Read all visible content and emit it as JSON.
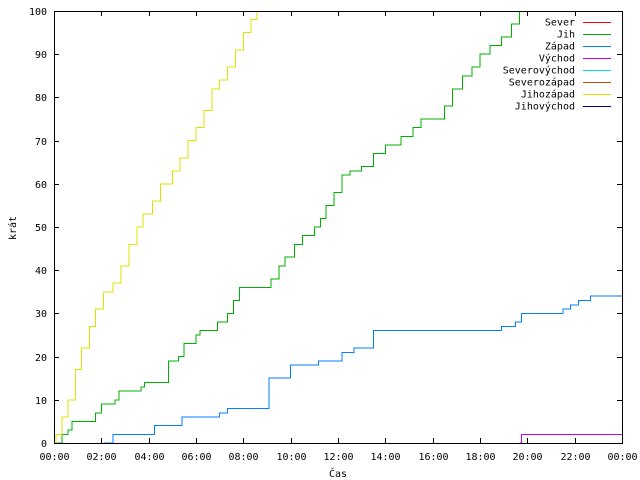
{
  "chart_data": {
    "type": "line",
    "xlabel": "Čas",
    "ylabel": "krát",
    "xlim": [
      "00:00",
      "24:00"
    ],
    "ylim": [
      0,
      100
    ],
    "x_ticks": [
      "00:00",
      "02:00",
      "04:00",
      "06:00",
      "08:00",
      "10:00",
      "12:00",
      "14:00",
      "16:00",
      "18:00",
      "20:00",
      "22:00",
      "00:00"
    ],
    "y_ticks": [
      0,
      10,
      20,
      30,
      40,
      50,
      60,
      70,
      80,
      90,
      100
    ],
    "grid": false,
    "legend_position": "top-right",
    "series": [
      {
        "name": "Sever",
        "color": "#ff0000",
        "points": []
      },
      {
        "name": "Jih",
        "color": "#00b000",
        "points": [
          [
            "00:00",
            0
          ],
          [
            "00:10",
            0
          ],
          [
            "00:20",
            2
          ],
          [
            "00:35",
            3
          ],
          [
            "00:45",
            5
          ],
          [
            "01:30",
            5
          ],
          [
            "01:45",
            7
          ],
          [
            "02:00",
            9
          ],
          [
            "02:35",
            10
          ],
          [
            "02:45",
            12
          ],
          [
            "03:30",
            12
          ],
          [
            "03:40",
            13
          ],
          [
            "03:50",
            14
          ],
          [
            "04:30",
            14
          ],
          [
            "04:50",
            19
          ],
          [
            "05:15",
            20
          ],
          [
            "05:30",
            23
          ],
          [
            "06:00",
            25
          ],
          [
            "06:10",
            26
          ],
          [
            "06:45",
            26
          ],
          [
            "06:55",
            28
          ],
          [
            "07:20",
            30
          ],
          [
            "07:35",
            33
          ],
          [
            "07:50",
            36
          ],
          [
            "08:50",
            36
          ],
          [
            "09:10",
            38
          ],
          [
            "09:30",
            41
          ],
          [
            "09:45",
            43
          ],
          [
            "10:10",
            46
          ],
          [
            "10:30",
            48
          ],
          [
            "11:00",
            50
          ],
          [
            "11:15",
            52
          ],
          [
            "11:30",
            55
          ],
          [
            "11:50",
            58
          ],
          [
            "12:10",
            62
          ],
          [
            "12:30",
            63
          ],
          [
            "13:00",
            64
          ],
          [
            "13:30",
            67
          ],
          [
            "14:00",
            69
          ],
          [
            "14:40",
            71
          ],
          [
            "15:10",
            73
          ],
          [
            "15:30",
            75
          ],
          [
            "16:10",
            75
          ],
          [
            "16:30",
            78
          ],
          [
            "16:50",
            82
          ],
          [
            "17:15",
            85
          ],
          [
            "17:40",
            87
          ],
          [
            "18:00",
            90
          ],
          [
            "18:25",
            92
          ],
          [
            "18:55",
            94
          ],
          [
            "19:20",
            97
          ],
          [
            "19:40",
            100
          ]
        ]
      },
      {
        "name": "Západ",
        "color": "#0080ff",
        "points": [
          [
            "02:05",
            0
          ],
          [
            "02:30",
            2
          ],
          [
            "03:55",
            2
          ],
          [
            "04:15",
            4
          ],
          [
            "05:15",
            4
          ],
          [
            "05:25",
            6
          ],
          [
            "06:50",
            6
          ],
          [
            "07:00",
            7
          ],
          [
            "07:20",
            8
          ],
          [
            "08:50",
            8
          ],
          [
            "09:05",
            15
          ],
          [
            "09:50",
            15
          ],
          [
            "10:00",
            18
          ],
          [
            "11:00",
            18
          ],
          [
            "11:10",
            19
          ],
          [
            "12:00",
            19
          ],
          [
            "12:10",
            21
          ],
          [
            "12:40",
            22
          ],
          [
            "13:20",
            22
          ],
          [
            "13:30",
            26
          ],
          [
            "18:50",
            26
          ],
          [
            "18:55",
            27
          ],
          [
            "19:30",
            28
          ],
          [
            "19:45",
            30
          ],
          [
            "21:20",
            30
          ],
          [
            "21:30",
            31
          ],
          [
            "21:50",
            32
          ],
          [
            "22:10",
            33
          ],
          [
            "22:40",
            34
          ],
          [
            "24:00",
            34
          ]
        ]
      },
      {
        "name": "Východ",
        "color": "#c000ff",
        "points": [
          [
            "19:40",
            0
          ],
          [
            "19:45",
            2
          ],
          [
            "24:00",
            2
          ]
        ]
      },
      {
        "name": "Severovýchod",
        "color": "#00e0e0",
        "points": []
      },
      {
        "name": "Severozápad",
        "color": "#c05000",
        "points": []
      },
      {
        "name": "Jihozápad",
        "color": "#e0e000",
        "points": [
          [
            "00:00",
            0
          ],
          [
            "00:05",
            2
          ],
          [
            "00:20",
            6
          ],
          [
            "00:35",
            10
          ],
          [
            "00:55",
            17
          ],
          [
            "01:10",
            22
          ],
          [
            "01:30",
            27
          ],
          [
            "01:45",
            31
          ],
          [
            "02:05",
            35
          ],
          [
            "02:30",
            37
          ],
          [
            "02:50",
            41
          ],
          [
            "03:10",
            46
          ],
          [
            "03:30",
            50
          ],
          [
            "03:45",
            53
          ],
          [
            "04:10",
            56
          ],
          [
            "04:30",
            60
          ],
          [
            "05:00",
            63
          ],
          [
            "05:20",
            66
          ],
          [
            "05:40",
            70
          ],
          [
            "06:00",
            73
          ],
          [
            "06:20",
            77
          ],
          [
            "06:40",
            82
          ],
          [
            "07:00",
            84
          ],
          [
            "07:20",
            87
          ],
          [
            "07:40",
            91
          ],
          [
            "08:00",
            95
          ],
          [
            "08:20",
            98
          ],
          [
            "08:35",
            100
          ]
        ]
      },
      {
        "name": "Jihovýchod",
        "color": "#000080",
        "points": []
      }
    ]
  }
}
